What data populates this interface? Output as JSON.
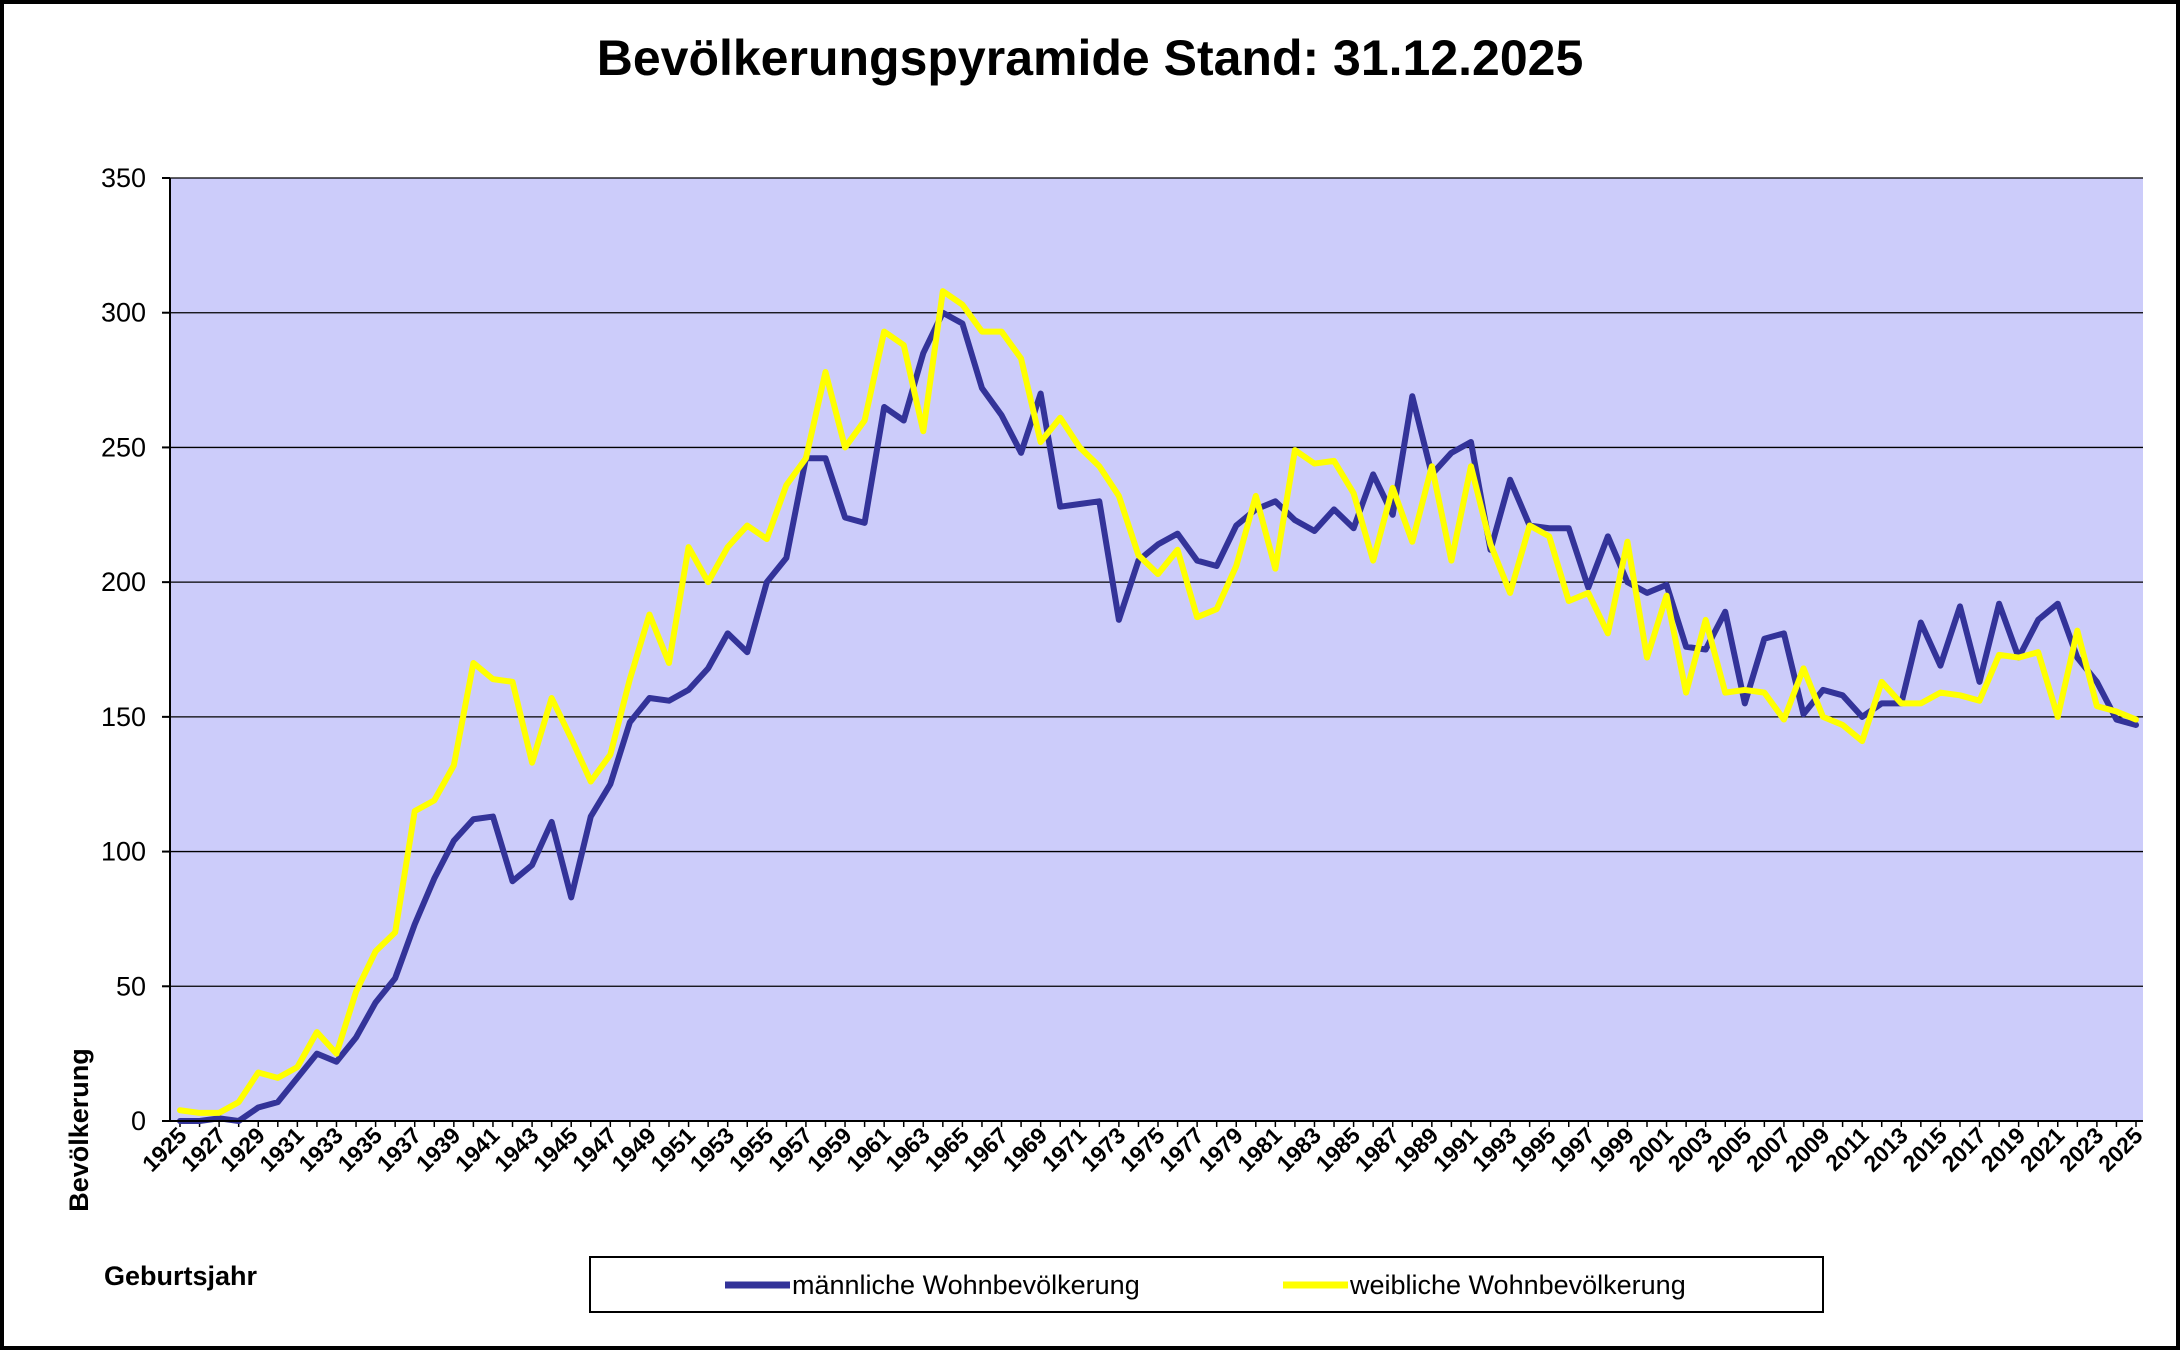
{
  "chart_data": {
    "type": "line",
    "title": "Bevölkerungspyramide Stand: 31.12.2025",
    "xlabel": "Geburtsjahr",
    "ylabel": "Bevölkerung",
    "ylim": [
      0,
      350
    ],
    "yticks": [
      "0",
      "50",
      "100",
      "150",
      "200",
      "250",
      "300",
      "350"
    ],
    "grid": true,
    "legend_position": "bottom",
    "plot_background": "#ccccfa",
    "x": [
      1925,
      1926,
      1927,
      1928,
      1929,
      1930,
      1931,
      1932,
      1933,
      1934,
      1935,
      1936,
      1937,
      1938,
      1939,
      1940,
      1941,
      1942,
      1943,
      1944,
      1945,
      1946,
      1947,
      1948,
      1949,
      1950,
      1951,
      1952,
      1953,
      1954,
      1955,
      1956,
      1957,
      1958,
      1959,
      1960,
      1961,
      1962,
      1963,
      1964,
      1965,
      1966,
      1967,
      1968,
      1969,
      1970,
      1971,
      1972,
      1973,
      1974,
      1975,
      1976,
      1977,
      1978,
      1979,
      1980,
      1981,
      1982,
      1983,
      1984,
      1985,
      1986,
      1987,
      1988,
      1989,
      1990,
      1991,
      1992,
      1993,
      1994,
      1995,
      1996,
      1997,
      1998,
      1999,
      2000,
      2001,
      2002,
      2003,
      2004,
      2005,
      2006,
      2007,
      2008,
      2009,
      2010,
      2011,
      2012,
      2013,
      2014,
      2015,
      2016,
      2017,
      2018,
      2019,
      2020,
      2021,
      2022,
      2023,
      2024,
      2025
    ],
    "xtick_labels": [
      "1925",
      "1927",
      "1929",
      "1931",
      "1933",
      "1935",
      "1937",
      "1939",
      "1941",
      "1943",
      "1945",
      "1947",
      "1949",
      "1951",
      "1953",
      "1955",
      "1957",
      "1959",
      "1961",
      "1963",
      "1965",
      "1967",
      "1969",
      "1971",
      "1973",
      "1975",
      "1977",
      "1979",
      "1981",
      "1983",
      "1985",
      "1987",
      "1989",
      "1991",
      "1993",
      "1995",
      "1997",
      "1999",
      "2001",
      "2003",
      "2005",
      "2007",
      "2009",
      "2011",
      "2013",
      "2015",
      "2017",
      "2019",
      "2021",
      "2023",
      "2025"
    ],
    "series": [
      {
        "name": "männliche Wohnbevölkerung",
        "color": "#333399",
        "values": [
          0,
          0,
          1,
          0,
          5,
          7,
          16,
          25,
          22,
          31,
          44,
          53,
          73,
          90,
          104,
          112,
          113,
          89,
          95,
          111,
          83,
          113,
          125,
          148,
          157,
          156,
          160,
          168,
          181,
          174,
          200,
          209,
          246,
          246,
          224,
          222,
          265,
          260,
          285,
          300,
          296,
          272,
          262,
          248,
          270,
          228,
          229,
          230,
          186,
          208,
          214,
          218,
          208,
          206,
          221,
          227,
          230,
          223,
          219,
          227,
          220,
          240,
          225,
          269,
          240,
          248,
          252,
          212,
          238,
          221,
          220,
          220,
          198,
          217,
          200,
          196,
          199,
          176,
          175,
          189,
          155,
          179,
          181,
          151,
          160,
          158,
          150,
          155,
          155,
          185,
          169,
          191,
          163,
          192,
          172,
          186,
          192,
          172,
          163,
          149,
          147
        ]
      },
      {
        "name": "weibliche Wohnbevölkerung",
        "color": "#ffff00",
        "values": [
          4,
          3,
          3,
          7,
          18,
          16,
          20,
          33,
          25,
          48,
          63,
          70,
          115,
          119,
          132,
          170,
          164,
          163,
          133,
          157,
          142,
          126,
          136,
          164,
          188,
          170,
          213,
          200,
          213,
          221,
          216,
          236,
          246,
          278,
          250,
          260,
          293,
          288,
          256,
          308,
          303,
          293,
          293,
          283,
          252,
          261,
          250,
          243,
          232,
          210,
          203,
          212,
          187,
          190,
          206,
          232,
          205,
          249,
          244,
          245,
          233,
          208,
          235,
          215,
          243,
          208,
          243,
          214,
          196,
          221,
          217,
          193,
          196,
          181,
          215,
          172,
          195,
          159,
          186,
          159,
          160,
          159,
          149,
          168,
          150,
          147,
          141,
          163,
          155,
          155,
          159,
          158,
          156,
          173,
          172,
          174,
          150,
          182,
          154,
          152,
          149
        ]
      }
    ]
  }
}
